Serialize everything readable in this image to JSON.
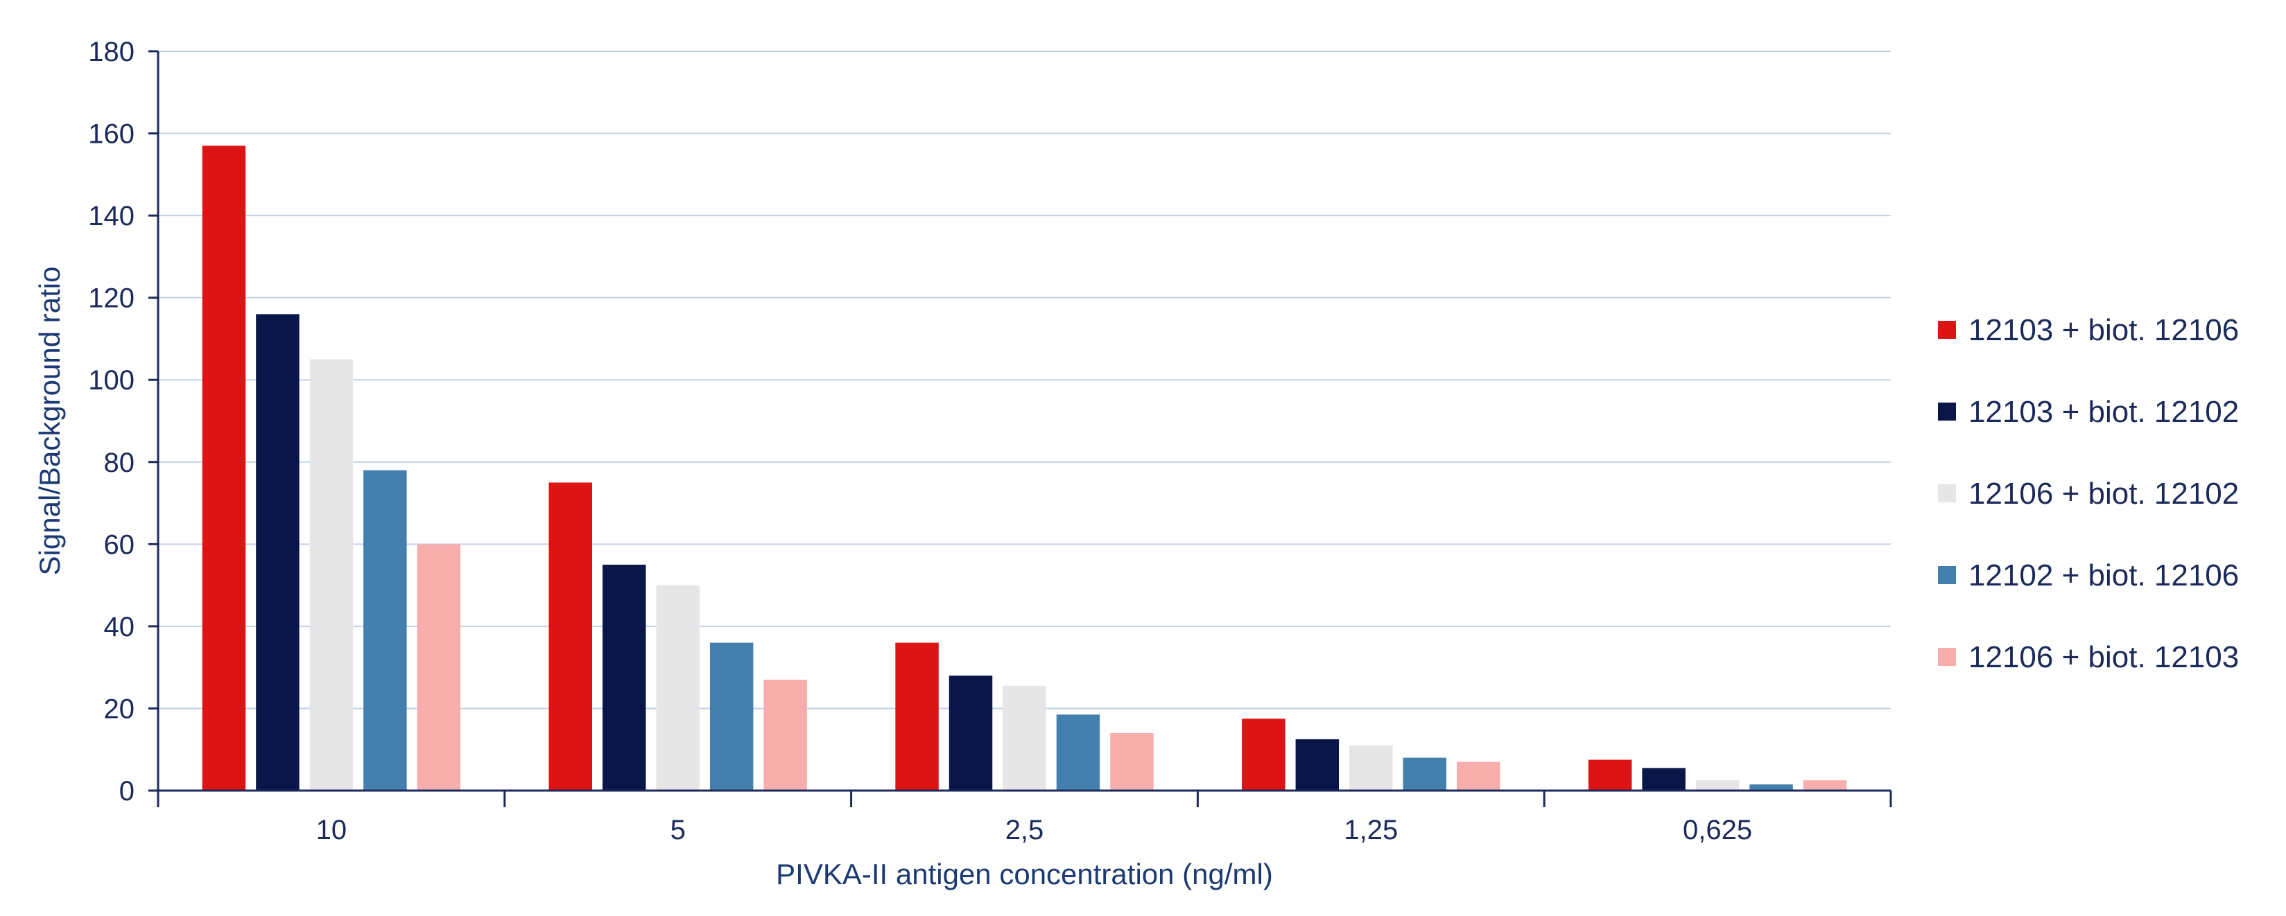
{
  "chart_data": {
    "type": "bar",
    "title": "",
    "xlabel": "PIVKA-II antigen concentration (ng/ml)",
    "ylabel": "Signal/Background ratio",
    "ylim": [
      0,
      180
    ],
    "yticks": [
      0,
      20,
      40,
      60,
      80,
      100,
      120,
      140,
      160,
      180
    ],
    "grid": true,
    "legend_position": "right",
    "categories": [
      "10",
      "5",
      "2,5",
      "1,25",
      "0,625"
    ],
    "series": [
      {
        "name": "12103 + biot. 12106",
        "color": "#dd1414",
        "values": [
          157,
          75,
          36,
          17.5,
          7.5
        ]
      },
      {
        "name": "12103 + biot. 12102",
        "color": "#0b1648",
        "values": [
          116,
          55,
          28,
          12.5,
          5.5
        ]
      },
      {
        "name": "12106 + biot. 12102",
        "color": "#e6e6e6",
        "values": [
          105,
          50,
          25.5,
          11,
          2.5
        ]
      },
      {
        "name": "12102 + biot. 12106",
        "color": "#4480ad",
        "values": [
          78,
          36,
          18.5,
          8,
          1.5
        ]
      },
      {
        "name": "12106 + biot. 12103",
        "color": "#f8adad",
        "values": [
          60,
          27,
          14,
          7,
          2.5
        ]
      }
    ]
  }
}
